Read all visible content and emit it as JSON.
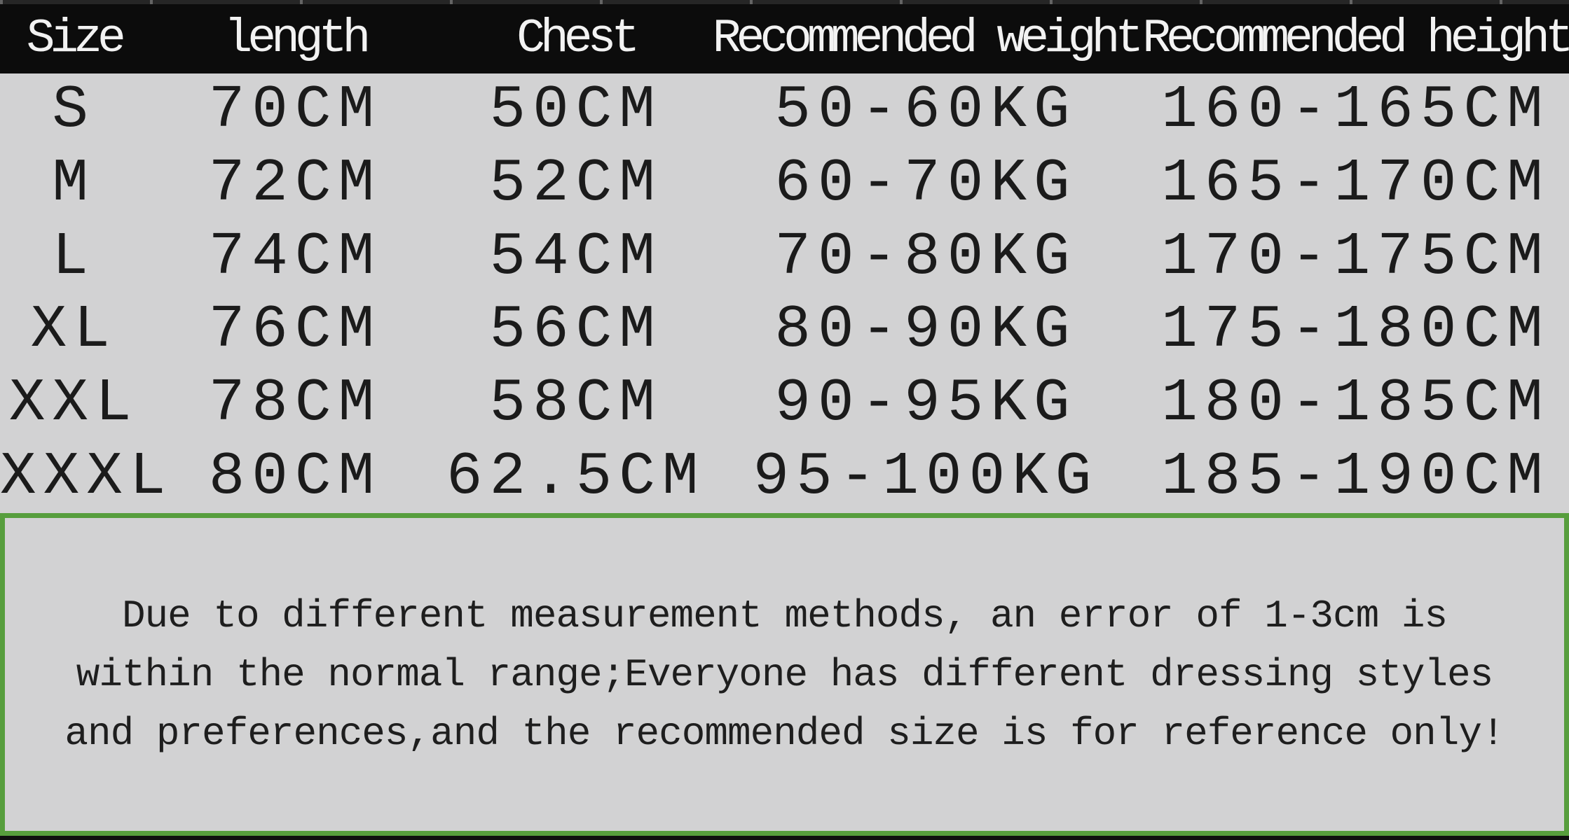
{
  "chart_data": {
    "type": "table",
    "columns": [
      "Size",
      "length",
      "Chest",
      "Recommended weight",
      "Recommended height"
    ],
    "rows": [
      [
        "S",
        "70CM",
        "50CM",
        "50-60KG",
        "160-165CM"
      ],
      [
        "M",
        "72CM",
        "52CM",
        "60-70KG",
        "165-170CM"
      ],
      [
        "L",
        "74CM",
        "54CM",
        "70-80KG",
        "170-175CM"
      ],
      [
        "XL",
        "76CM",
        "56CM",
        "80-90KG",
        "175-180CM"
      ],
      [
        "XXL",
        "78CM",
        "58CM",
        "90-95KG",
        "180-185CM"
      ],
      [
        "XXXL",
        "80CM",
        "62.5CM",
        "95-100KG",
        "185-190CM"
      ]
    ],
    "layout_hints": {
      "header_style": "black bar, white text",
      "grid": "off",
      "alignment": "center"
    }
  },
  "note": {
    "lines": [
      "Due to different measurement methods, an error of 1-3cm is",
      "within the normal range;Everyone has different dressing styles",
      "and preferences,and the recommended size is for reference only!"
    ]
  },
  "colors": {
    "header_bg": "#0c0c0c",
    "header_text": "#f2f2f2",
    "body_bg": "#d2d2d3",
    "body_text": "#1b1b1b",
    "note_border": "#579e3d",
    "edge_strip": "#0f0f0f"
  }
}
